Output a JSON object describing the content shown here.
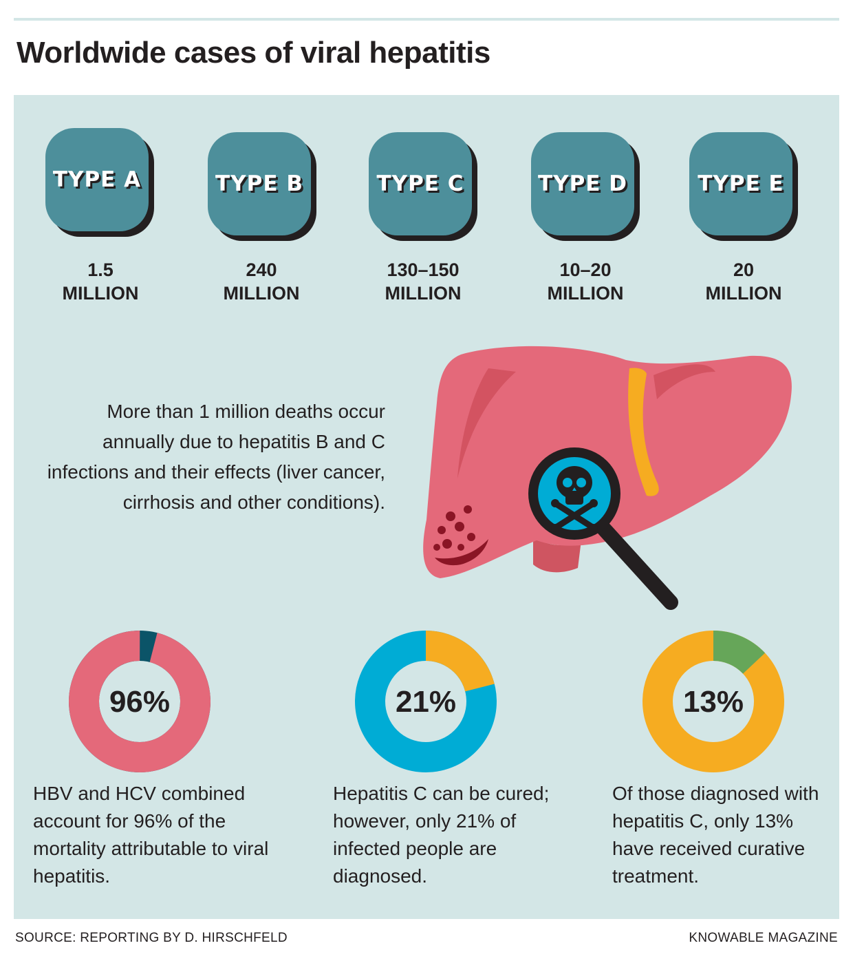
{
  "title": "Worldwide cases of viral hepatitis",
  "types": [
    {
      "label": "TYPE A",
      "count_line1": "1.5",
      "count_line2": "MILLION"
    },
    {
      "label": "TYPE B",
      "count_line1": "240",
      "count_line2": "MILLION"
    },
    {
      "label": "TYPE C",
      "count_line1": "130–150",
      "count_line2": "MILLION"
    },
    {
      "label": "TYPE D",
      "count_line1": "10–20",
      "count_line2": "MILLION"
    },
    {
      "label": "TYPE E",
      "count_line1": "20",
      "count_line2": "MILLION"
    }
  ],
  "deaths_text": "More than 1 million deaths occur annually due to hepatitis B and C infections and their effects (liver cancer, cirrhosis and other conditions).",
  "stats": [
    {
      "value": 96,
      "label": "96%",
      "main_color": "#e4697a",
      "remainder_color": "#0b5468",
      "description": "HBV and HCV combined account for 96% of the mortality attributable to viral hepatitis."
    },
    {
      "value": 21,
      "label": "21%",
      "main_color": "#f6ac21",
      "remainder_color": "#00acd5",
      "description": "Hepatitis C can be cured; however, only 21% of infected people are diagnosed."
    },
    {
      "value": 13,
      "label": "13%",
      "main_color": "#66a659",
      "remainder_color": "#f6ac21",
      "description": "Of those diagnosed with hepatitis C, only 13% have received curative treatment."
    }
  ],
  "footer": {
    "source": "SOURCE: REPORTING BY D. HIRSCHFELD",
    "credit": "KNOWABLE MAGAZINE"
  },
  "colors": {
    "background_panel": "#d3e6e6",
    "badge": "#4d8f9b",
    "liver": "#e4697a",
    "gallbladder": "#f6ac21",
    "magnifier_lens": "#00acd5"
  },
  "icons": [
    "liver-illustration",
    "magnifying-glass-icon",
    "skull-crossbones-icon"
  ]
}
